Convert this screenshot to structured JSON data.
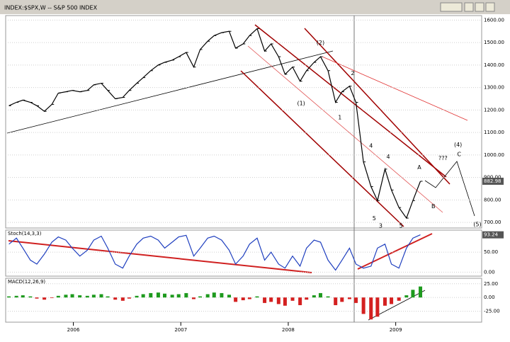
{
  "chart_data": [
    {
      "type": "line",
      "title": "INDEX:$SPX,W -- S&P 500 INDEX",
      "color": "#000000",
      "x": [
        2005.4,
        2005.47,
        2005.53,
        2005.6,
        2005.66,
        2005.73,
        2005.8,
        2005.86,
        2005.93,
        2005.99,
        2006.06,
        2006.13,
        2006.19,
        2006.26,
        2006.32,
        2006.39,
        2006.46,
        2006.52,
        2006.59,
        2006.65,
        2006.72,
        2006.79,
        2006.85,
        2006.92,
        2006.98,
        2007.05,
        2007.12,
        2007.18,
        2007.25,
        2007.31,
        2007.38,
        2007.45,
        2007.51,
        2007.58,
        2007.64,
        2007.71,
        2007.78,
        2007.84,
        2007.91,
        2007.97,
        2008.04,
        2008.11,
        2008.17,
        2008.24,
        2008.3,
        2008.37,
        2008.44,
        2008.5,
        2008.57,
        2008.63,
        2008.7,
        2008.77,
        2008.83,
        2008.9,
        2008.96,
        2009.03,
        2009.1,
        2009.16,
        2009.23
      ],
      "values": [
        1219,
        1234,
        1244,
        1234,
        1219,
        1194,
        1225,
        1275,
        1281,
        1287,
        1281,
        1287,
        1312,
        1319,
        1287,
        1250,
        1256,
        1287,
        1319,
        1344,
        1375,
        1400,
        1412,
        1422,
        1437,
        1456,
        1391,
        1469,
        1506,
        1531,
        1544,
        1550,
        1475,
        1494,
        1531,
        1562,
        1462,
        1494,
        1437,
        1359,
        1391,
        1328,
        1375,
        1412,
        1437,
        1375,
        1234,
        1281,
        1306,
        1234,
        969,
        859,
        797,
        937,
        844,
        766,
        719,
        797,
        882.98
      ],
      "xlim": [
        2005.37,
        2009.8
      ],
      "ylim": [
        675,
        1620
      ],
      "xticks": [
        {
          "value": 2006,
          "label": "2006"
        },
        {
          "value": 2007,
          "label": "2007"
        },
        {
          "value": 2008,
          "label": "2008"
        },
        {
          "value": 2009,
          "label": "2009"
        }
      ],
      "yticks": [
        {
          "value": 700,
          "label": "700.00"
        },
        {
          "value": 800,
          "label": "800.00"
        },
        {
          "value": 900,
          "label": "900.00"
        },
        {
          "value": 1000,
          "label": "1000.00"
        },
        {
          "value": 1100,
          "label": "1100.00"
        },
        {
          "value": 1200,
          "label": "1200.00"
        },
        {
          "value": 1300,
          "label": "1300.00"
        },
        {
          "value": 1400,
          "label": "1400.00"
        },
        {
          "value": 1500,
          "label": "1500.00"
        },
        {
          "value": 1600,
          "label": "1600.00"
        }
      ],
      "annotations": [
        {
          "text": "(2)",
          "x": 2008.3,
          "y": 1499
        },
        {
          "text": "(1)",
          "x": 2008.12,
          "y": 1230
        },
        {
          "text": "2",
          "x": 2008.6,
          "y": 1363
        },
        {
          "text": "1",
          "x": 2008.48,
          "y": 1166
        },
        {
          "text": "4",
          "x": 2008.77,
          "y": 1040
        },
        {
          "text": "3",
          "x": 2008.86,
          "y": 685
        },
        {
          "text": "5",
          "x": 2008.8,
          "y": 717
        },
        {
          "text": "4",
          "x": 2008.93,
          "y": 992
        },
        {
          "text": "5",
          "x": 2009.05,
          "y": 685
        },
        {
          "text": "A",
          "x": 2009.22,
          "y": 945
        },
        {
          "text": "B",
          "x": 2009.35,
          "y": 771
        },
        {
          "text": "???",
          "x": 2009.44,
          "y": 986
        },
        {
          "text": "(4)",
          "x": 2009.58,
          "y": 1045
        },
        {
          "text": "C",
          "x": 2009.59,
          "y": 1002
        },
        {
          "text": "(5)",
          "x": 2009.76,
          "y": 690
        }
      ]
    },
    {
      "type": "line",
      "title": "Stoch(14,3,3)",
      "color": "#1f3fbf",
      "values": [
        70,
        85,
        60,
        30,
        20,
        45,
        75,
        88,
        80,
        60,
        40,
        55,
        80,
        90,
        60,
        20,
        10,
        40,
        70,
        85,
        90,
        80,
        60,
        75,
        88,
        92,
        40,
        60,
        85,
        90,
        80,
        55,
        20,
        40,
        70,
        85,
        30,
        50,
        20,
        10,
        40,
        15,
        60,
        80,
        75,
        30,
        5,
        30,
        60,
        20,
        10,
        15,
        60,
        70,
        20,
        10,
        60,
        85,
        93.24
      ],
      "ylim": [
        -10,
        105
      ],
      "yticks": [
        {
          "value": 0,
          "label": "0.00"
        },
        {
          "value": 50,
          "label": "50.00"
        }
      ]
    },
    {
      "type": "bar",
      "title": "MACD(12,26,9)",
      "up_color": "#1e9a1e",
      "down_color": "#d42020",
      "values": [
        2,
        3,
        4,
        2,
        -2,
        -4,
        -1,
        3,
        5,
        6,
        4,
        3,
        5,
        6,
        2,
        -4,
        -6,
        -2,
        3,
        6,
        8,
        9,
        7,
        5,
        6,
        8,
        -3,
        2,
        6,
        9,
        8,
        5,
        -8,
        -5,
        -3,
        2,
        -10,
        -8,
        -12,
        -15,
        -6,
        -14,
        -4,
        4,
        8,
        2,
        -14,
        -8,
        -3,
        -10,
        -30,
        -40,
        -35,
        -15,
        -12,
        -6,
        4,
        14,
        20
      ],
      "ylim": [
        -45,
        35
      ],
      "yticks": [
        {
          "value": -25,
          "label": "-25.00"
        },
        {
          "value": 0,
          "label": "0.00"
        },
        {
          "value": 25,
          "label": "25.00"
        }
      ]
    }
  ]
}
